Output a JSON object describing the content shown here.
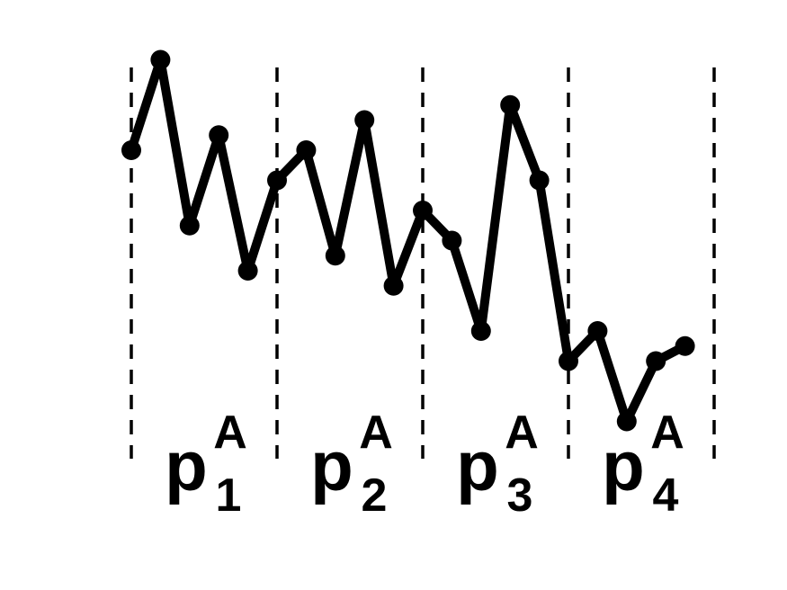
{
  "diagram": {
    "colors": {
      "line": "#000000",
      "background": "#ffffff"
    },
    "series": [
      {
        "values": [
          0.6,
          0.9,
          0.35,
          0.65,
          0.2,
          0.5,
          0.6,
          0.25,
          0.7,
          0.15,
          0.4,
          0.3,
          0.0,
          0.75,
          0.5,
          -0.1,
          0.0,
          -0.3,
          -0.1,
          -0.05
        ]
      }
    ],
    "segments": [
      {
        "base": "p",
        "subscript": "1",
        "superscript": "A"
      },
      {
        "base": "p",
        "subscript": "2",
        "superscript": "A"
      },
      {
        "base": "p",
        "subscript": "3",
        "superscript": "A"
      },
      {
        "base": "p",
        "subscript": "4",
        "superscript": "A"
      }
    ]
  }
}
